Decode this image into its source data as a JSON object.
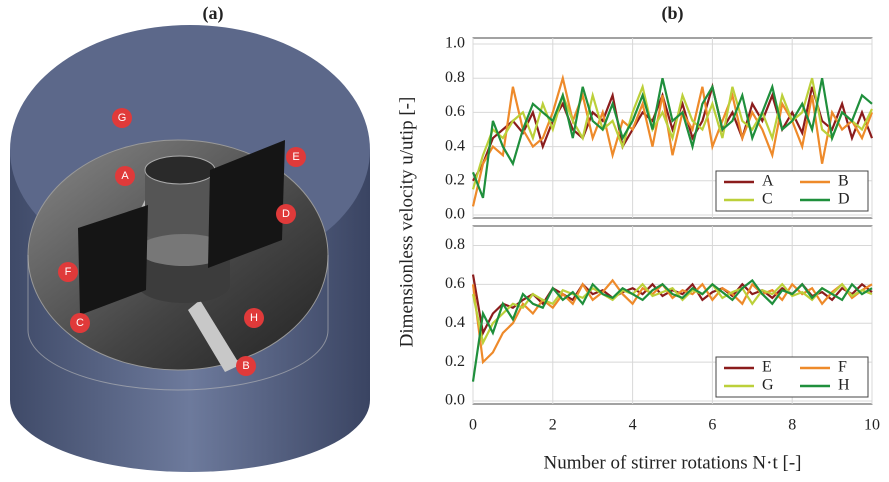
{
  "panel_a": {
    "label": "(a)",
    "markers": [
      "G",
      "A",
      "E",
      "D",
      "F",
      "C",
      "H",
      "B"
    ]
  },
  "chart_data": [
    {
      "type": "line",
      "title": "(b)",
      "ylabel": "Dimensionless velocity u/utip [-]",
      "x": [
        0,
        0.25,
        0.5,
        0.75,
        1,
        1.25,
        1.5,
        1.75,
        2,
        2.25,
        2.5,
        2.75,
        3,
        3.25,
        3.5,
        3.75,
        4,
        4.25,
        4.5,
        4.75,
        5,
        5.25,
        5.5,
        5.75,
        6,
        6.25,
        6.5,
        6.75,
        7,
        7.25,
        7.5,
        7.75,
        8,
        8.25,
        8.5,
        8.75,
        9,
        9.25,
        9.5,
        9.75,
        10
      ],
      "xlim": [
        0,
        10
      ],
      "xticks": [
        0,
        2,
        4,
        6,
        8,
        10
      ],
      "ylim": [
        0,
        1
      ],
      "yticks": [
        {
          "value": 0,
          "label": "0.0"
        },
        0.2,
        0.4,
        0.6,
        0.8,
        {
          "value": 1,
          "label": "1.0"
        }
      ],
      "grid": true,
      "legend": "lower right",
      "series": [
        {
          "name": "A",
          "color": "#8b1c1c",
          "values": [
            0.2,
            0.3,
            0.45,
            0.5,
            0.55,
            0.48,
            0.6,
            0.4,
            0.55,
            0.65,
            0.5,
            0.45,
            0.6,
            0.55,
            0.7,
            0.4,
            0.5,
            0.6,
            0.55,
            0.7,
            0.5,
            0.65,
            0.45,
            0.55,
            0.75,
            0.5,
            0.6,
            0.45,
            0.65,
            0.55,
            0.7,
            0.5,
            0.6,
            0.48,
            0.75,
            0.55,
            0.5,
            0.65,
            0.45,
            0.6,
            0.45
          ]
        },
        {
          "name": "B",
          "color": "#ee8a2a",
          "values": [
            0.05,
            0.3,
            0.4,
            0.35,
            0.75,
            0.5,
            0.4,
            0.45,
            0.6,
            0.8,
            0.55,
            0.7,
            0.45,
            0.6,
            0.35,
            0.55,
            0.5,
            0.65,
            0.4,
            0.7,
            0.35,
            0.6,
            0.5,
            0.75,
            0.4,
            0.55,
            0.7,
            0.45,
            0.6,
            0.5,
            0.35,
            0.65,
            0.55,
            0.4,
            0.7,
            0.3,
            0.6,
            0.5,
            0.55,
            0.45,
            0.6
          ]
        },
        {
          "name": "C",
          "color": "#bcd03a",
          "values": [
            0.15,
            0.35,
            0.5,
            0.45,
            0.55,
            0.6,
            0.45,
            0.65,
            0.5,
            0.7,
            0.55,
            0.45,
            0.7,
            0.5,
            0.55,
            0.4,
            0.6,
            0.75,
            0.5,
            0.6,
            0.45,
            0.7,
            0.55,
            0.5,
            0.65,
            0.45,
            0.75,
            0.55,
            0.5,
            0.6,
            0.45,
            0.7,
            0.55,
            0.6,
            0.8,
            0.5,
            0.45,
            0.6,
            0.55,
            0.5,
            0.62
          ]
        },
        {
          "name": "D",
          "color": "#1f8f3c",
          "values": [
            0.25,
            0.1,
            0.55,
            0.4,
            0.3,
            0.5,
            0.65,
            0.6,
            0.55,
            0.7,
            0.45,
            0.75,
            0.55,
            0.5,
            0.65,
            0.45,
            0.55,
            0.7,
            0.5,
            0.8,
            0.55,
            0.6,
            0.4,
            0.65,
            0.75,
            0.5,
            0.55,
            0.7,
            0.45,
            0.6,
            0.75,
            0.5,
            0.55,
            0.65,
            0.5,
            0.8,
            0.45,
            0.6,
            0.55,
            0.7,
            0.65
          ]
        }
      ]
    },
    {
      "type": "line",
      "xlabel": "Number of stirrer rotations N·t [-]",
      "x": [
        0,
        0.25,
        0.5,
        0.75,
        1,
        1.25,
        1.5,
        1.75,
        2,
        2.25,
        2.5,
        2.75,
        3,
        3.25,
        3.5,
        3.75,
        4,
        4.25,
        4.5,
        4.75,
        5,
        5.25,
        5.5,
        5.75,
        6,
        6.25,
        6.5,
        6.75,
        7,
        7.25,
        7.5,
        7.75,
        8,
        8.25,
        8.5,
        8.75,
        9,
        9.25,
        9.5,
        9.75,
        10
      ],
      "xlim": [
        0,
        10
      ],
      "xticks": [
        0,
        2,
        4,
        6,
        8,
        10
      ],
      "ylim": [
        0,
        0.9
      ],
      "yticks": [
        {
          "value": 0,
          "label": "0.0"
        },
        0.2,
        0.4,
        0.6,
        0.8
      ],
      "grid": true,
      "legend": "lower right",
      "series": [
        {
          "name": "E",
          "color": "#8b1c1c",
          "values": [
            0.65,
            0.35,
            0.45,
            0.5,
            0.48,
            0.52,
            0.55,
            0.5,
            0.58,
            0.55,
            0.52,
            0.6,
            0.55,
            0.57,
            0.53,
            0.56,
            0.58,
            0.55,
            0.6,
            0.54,
            0.57,
            0.55,
            0.6,
            0.52,
            0.56,
            0.58,
            0.54,
            0.6,
            0.55,
            0.57,
            0.53,
            0.58,
            0.55,
            0.6,
            0.54,
            0.56,
            0.52,
            0.58,
            0.55,
            0.6,
            0.56
          ]
        },
        {
          "name": "F",
          "color": "#ee8a2a",
          "values": [
            0.6,
            0.2,
            0.25,
            0.35,
            0.4,
            0.5,
            0.45,
            0.52,
            0.48,
            0.55,
            0.5,
            0.6,
            0.52,
            0.56,
            0.62,
            0.55,
            0.5,
            0.58,
            0.55,
            0.6,
            0.53,
            0.57,
            0.55,
            0.6,
            0.52,
            0.58,
            0.55,
            0.5,
            0.6,
            0.55,
            0.57,
            0.52,
            0.6,
            0.55,
            0.58,
            0.5,
            0.56,
            0.6,
            0.53,
            0.57,
            0.6
          ]
        },
        {
          "name": "G",
          "color": "#bcd03a",
          "values": [
            0.55,
            0.3,
            0.4,
            0.45,
            0.5,
            0.48,
            0.55,
            0.52,
            0.5,
            0.57,
            0.55,
            0.53,
            0.58,
            0.55,
            0.52,
            0.57,
            0.55,
            0.6,
            0.54,
            0.56,
            0.58,
            0.52,
            0.57,
            0.55,
            0.6,
            0.53,
            0.56,
            0.58,
            0.5,
            0.57,
            0.55,
            0.6,
            0.54,
            0.56,
            0.52,
            0.58,
            0.55,
            0.6,
            0.54,
            0.57,
            0.55
          ]
        },
        {
          "name": "H",
          "color": "#1f8f3c",
          "values": [
            0.1,
            0.45,
            0.35,
            0.5,
            0.42,
            0.55,
            0.5,
            0.48,
            0.58,
            0.52,
            0.56,
            0.5,
            0.6,
            0.55,
            0.53,
            0.58,
            0.55,
            0.52,
            0.57,
            0.6,
            0.55,
            0.53,
            0.58,
            0.55,
            0.6,
            0.56,
            0.52,
            0.58,
            0.62,
            0.55,
            0.5,
            0.57,
            0.55,
            0.6,
            0.53,
            0.58,
            0.55,
            0.52,
            0.6,
            0.55,
            0.58
          ]
        }
      ]
    }
  ]
}
